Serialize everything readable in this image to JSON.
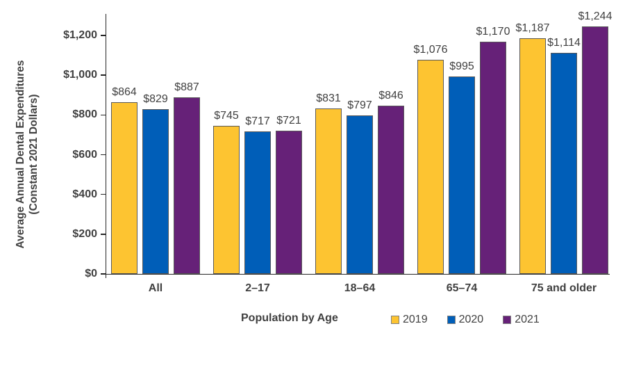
{
  "chart_data": {
    "type": "bar",
    "title": "",
    "xlabel": "Population by Age",
    "ylabel_line1": "Average Annual Dental Expenditures",
    "ylabel_line2": "(Constant 2021 Dollars)",
    "categories": [
      "All",
      "2–17",
      "18–64",
      "65–74",
      "75 and older"
    ],
    "series": [
      {
        "name": "2019",
        "color": "#FDC431",
        "values": [
          864,
          745,
          831,
          1076,
          1187
        ],
        "labels": [
          "$864",
          "$745",
          "$831",
          "$1,076",
          "$1,187"
        ]
      },
      {
        "name": "2020",
        "color": "#005EB8",
        "values": [
          829,
          717,
          797,
          995,
          1114
        ],
        "labels": [
          "$829",
          "$717",
          "$797",
          "$995",
          "$1,114"
        ]
      },
      {
        "name": "2021",
        "color": "#662178",
        "values": [
          887,
          721,
          846,
          1170,
          1244
        ],
        "labels": [
          "$887",
          "$721",
          "$846",
          "$1,170",
          "$1,244"
        ]
      }
    ],
    "y_axis": {
      "tick_labels": [
        "$0",
        "$200",
        "$400",
        "$600",
        "$800",
        "$1,000",
        "$1,200"
      ],
      "tick_values": [
        0,
        200,
        400,
        600,
        800,
        1000,
        1200
      ],
      "min": 0,
      "max": 1200
    },
    "legend": {
      "position": "bottom-right",
      "entries": [
        {
          "label": "2019",
          "color": "#FDC431"
        },
        {
          "label": "2020",
          "color": "#005EB8"
        },
        {
          "label": "2021",
          "color": "#662178"
        }
      ]
    },
    "grid": false,
    "colors": {
      "text": "#404040",
      "axis": "#262626",
      "bar_border": "#595959",
      "background": "#ffffff"
    }
  }
}
